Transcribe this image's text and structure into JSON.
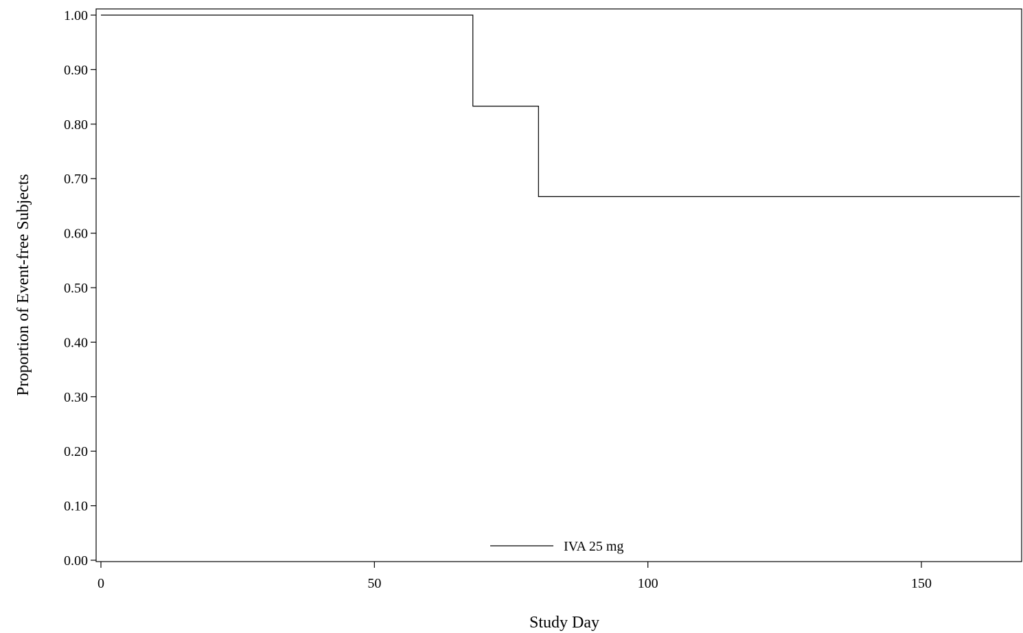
{
  "chart_data": {
    "type": "line",
    "title": "",
    "xlabel": "Study Day",
    "ylabel": "Proportion of Event-free Subjects",
    "xlim": [
      0,
      168
    ],
    "ylim": [
      0,
      1
    ],
    "x_ticks": [
      0,
      50,
      100,
      150
    ],
    "x_tick_labels": [
      "0",
      "50",
      "100",
      "150"
    ],
    "y_ticks": [
      0,
      0.1,
      0.2,
      0.3,
      0.4,
      0.5,
      0.6,
      0.7,
      0.8,
      0.9,
      1.0
    ],
    "y_tick_labels": [
      "0.00",
      "0.10",
      "0.20",
      "0.30",
      "0.40",
      "0.50",
      "0.60",
      "0.70",
      "0.80",
      "0.90",
      "1.00"
    ],
    "step": true,
    "grid": false,
    "legend_position": "bottom-center",
    "series": [
      {
        "name": "IVA 25 mg",
        "color": "#000000",
        "x": [
          0,
          68,
          80,
          168
        ],
        "y": [
          1.0,
          0.833,
          0.667,
          0.667
        ]
      }
    ]
  }
}
